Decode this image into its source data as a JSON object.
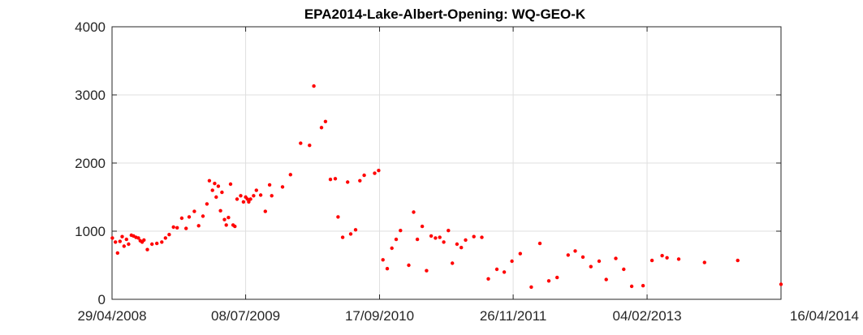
{
  "chart_data": {
    "type": "scatter",
    "title": "EPA2014-Lake-Albert-Opening: WQ-GEO-K",
    "xlabel": "",
    "ylabel": "",
    "x_axis_type": "date",
    "xlim": [
      "2008-04-29",
      "2014-04-16"
    ],
    "ylim": [
      0,
      4000
    ],
    "xticks": [
      "29/04/2008",
      "08/07/2009",
      "17/09/2010",
      "26/11/2011",
      "04/02/2013",
      "16/04/2014"
    ],
    "yticks": [
      "0",
      "1000",
      "2000",
      "3000",
      "4000"
    ],
    "grid": true,
    "legend": "none",
    "marker_color": "#ff0000",
    "series": [
      {
        "points": [
          [
            "2008-04-30",
            900
          ],
          [
            "2008-05-10",
            840
          ],
          [
            "2008-05-17",
            680
          ],
          [
            "2008-05-25",
            850
          ],
          [
            "2008-06-01",
            920
          ],
          [
            "2008-06-07",
            780
          ],
          [
            "2008-06-15",
            880
          ],
          [
            "2008-06-22",
            810
          ],
          [
            "2008-07-01",
            940
          ],
          [
            "2008-07-08",
            930
          ],
          [
            "2008-07-16",
            910
          ],
          [
            "2008-07-24",
            900
          ],
          [
            "2008-07-30",
            860
          ],
          [
            "2008-08-05",
            840
          ],
          [
            "2008-08-11",
            870
          ],
          [
            "2008-08-22",
            730
          ],
          [
            "2008-09-06",
            810
          ],
          [
            "2008-09-22",
            820
          ],
          [
            "2008-10-08",
            840
          ],
          [
            "2008-10-20",
            900
          ],
          [
            "2008-11-01",
            950
          ],
          [
            "2008-11-15",
            1060
          ],
          [
            "2008-11-27",
            1050
          ],
          [
            "2008-12-12",
            1190
          ],
          [
            "2008-12-26",
            1040
          ],
          [
            "2009-01-05",
            1210
          ],
          [
            "2009-01-22",
            1290
          ],
          [
            "2009-02-05",
            1080
          ],
          [
            "2009-02-19",
            1220
          ],
          [
            "2009-03-04",
            1400
          ],
          [
            "2009-03-12",
            1740
          ],
          [
            "2009-03-22",
            1600
          ],
          [
            "2009-03-29",
            1700
          ],
          [
            "2009-04-03",
            1500
          ],
          [
            "2009-04-10",
            1660
          ],
          [
            "2009-04-17",
            1300
          ],
          [
            "2009-04-22",
            1570
          ],
          [
            "2009-04-30",
            1170
          ],
          [
            "2009-05-06",
            1090
          ],
          [
            "2009-05-13",
            1200
          ],
          [
            "2009-05-20",
            1690
          ],
          [
            "2009-05-28",
            1090
          ],
          [
            "2009-06-03",
            1070
          ],
          [
            "2009-06-10",
            1470
          ],
          [
            "2009-06-22",
            1520
          ],
          [
            "2009-07-01",
            1430
          ],
          [
            "2009-07-08",
            1500
          ],
          [
            "2009-07-14",
            1470
          ],
          [
            "2009-07-18",
            1430
          ],
          [
            "2009-07-24",
            1470
          ],
          [
            "2009-08-03",
            1520
          ],
          [
            "2009-08-12",
            1600
          ],
          [
            "2009-08-26",
            1530
          ],
          [
            "2009-09-10",
            1290
          ],
          [
            "2009-09-24",
            1680
          ],
          [
            "2009-10-01",
            1520
          ],
          [
            "2009-11-05",
            1650
          ],
          [
            "2009-12-01",
            1830
          ],
          [
            "2010-01-03",
            2290
          ],
          [
            "2010-02-01",
            2260
          ],
          [
            "2010-02-15",
            3130
          ],
          [
            "2010-03-12",
            2520
          ],
          [
            "2010-03-25",
            2610
          ],
          [
            "2010-04-10",
            1760
          ],
          [
            "2010-04-26",
            1770
          ],
          [
            "2010-05-05",
            1210
          ],
          [
            "2010-05-20",
            910
          ],
          [
            "2010-06-05",
            1720
          ],
          [
            "2010-06-15",
            960
          ],
          [
            "2010-07-01",
            1020
          ],
          [
            "2010-07-15",
            1740
          ],
          [
            "2010-07-29",
            1820
          ],
          [
            "2010-09-01",
            1850
          ],
          [
            "2010-09-14",
            1890
          ],
          [
            "2010-09-28",
            580
          ],
          [
            "2010-10-12",
            450
          ],
          [
            "2010-10-27",
            750
          ],
          [
            "2010-11-10",
            880
          ],
          [
            "2010-11-24",
            1010
          ],
          [
            "2010-12-21",
            500
          ],
          [
            "2011-01-06",
            1280
          ],
          [
            "2011-01-18",
            880
          ],
          [
            "2011-02-03",
            1070
          ],
          [
            "2011-02-17",
            420
          ],
          [
            "2011-03-04",
            930
          ],
          [
            "2011-03-18",
            900
          ],
          [
            "2011-04-01",
            910
          ],
          [
            "2011-04-14",
            840
          ],
          [
            "2011-04-29",
            1010
          ],
          [
            "2011-05-12",
            530
          ],
          [
            "2011-05-27",
            810
          ],
          [
            "2011-06-10",
            760
          ],
          [
            "2011-06-24",
            870
          ],
          [
            "2011-07-21",
            920
          ],
          [
            "2011-08-16",
            910
          ],
          [
            "2011-09-06",
            300
          ],
          [
            "2011-10-04",
            440
          ],
          [
            "2011-10-28",
            400
          ],
          [
            "2011-11-22",
            560
          ],
          [
            "2011-12-19",
            670
          ],
          [
            "2012-01-24",
            180
          ],
          [
            "2012-02-21",
            820
          ],
          [
            "2012-03-21",
            270
          ],
          [
            "2012-04-17",
            320
          ],
          [
            "2012-05-23",
            650
          ],
          [
            "2012-06-15",
            710
          ],
          [
            "2012-07-10",
            620
          ],
          [
            "2012-08-05",
            480
          ],
          [
            "2012-09-01",
            560
          ],
          [
            "2012-09-24",
            290
          ],
          [
            "2012-10-25",
            600
          ],
          [
            "2012-11-20",
            440
          ],
          [
            "2012-12-16",
            190
          ],
          [
            "2013-01-22",
            200
          ],
          [
            "2013-02-20",
            570
          ],
          [
            "2013-03-25",
            640
          ],
          [
            "2013-04-10",
            610
          ],
          [
            "2013-05-18",
            590
          ],
          [
            "2013-08-10",
            540
          ],
          [
            "2013-11-26",
            570
          ],
          [
            "2014-04-16",
            220
          ]
        ]
      }
    ]
  }
}
